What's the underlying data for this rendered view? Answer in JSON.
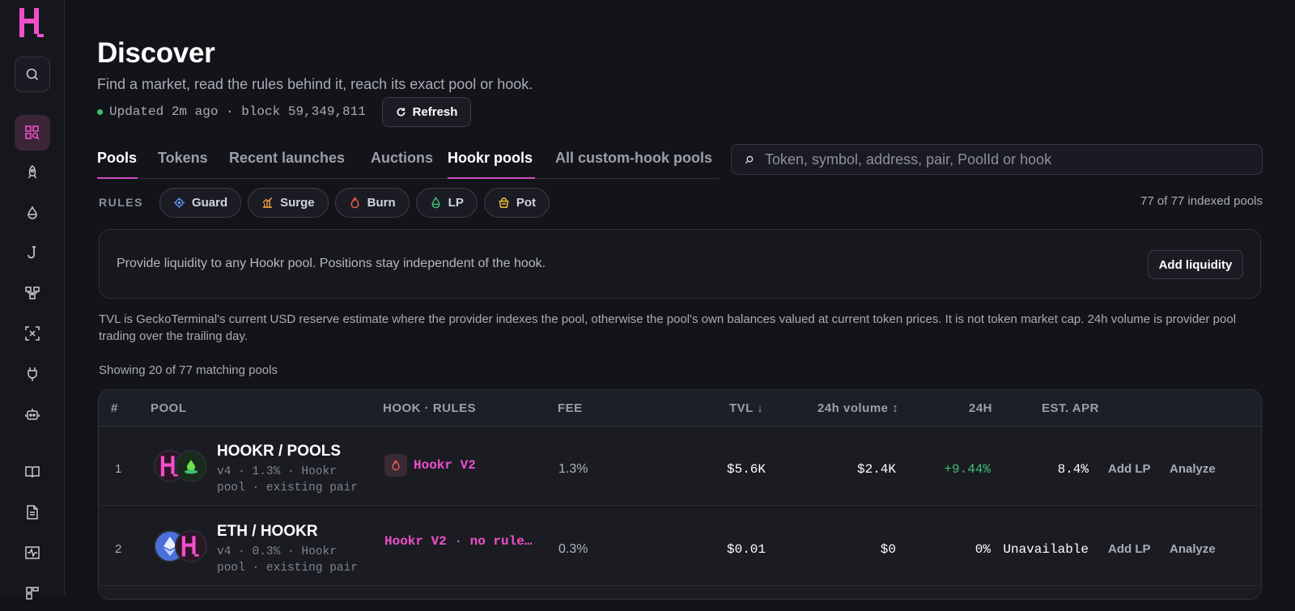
{
  "brand": {
    "logo_letter": "H",
    "accent": "#f04fc9"
  },
  "sidebar": {
    "icons": [
      "search-icon",
      "discover-icon",
      "rocket-icon",
      "drop-icon",
      "hook-icon",
      "hierarchy-icon",
      "scan-icon",
      "plug-icon",
      "robot-icon",
      "book-icon",
      "document-icon",
      "activity-icon"
    ]
  },
  "header": {
    "title": "Discover",
    "subtitle": "Find a market, read the rules behind it, reach its exact pool or hook.",
    "updated": "Updated 2m ago · block 59,349,811",
    "refresh_label": "Refresh"
  },
  "tabs": [
    {
      "label": "Pools",
      "active": true
    },
    {
      "label": "Tokens",
      "active": false
    },
    {
      "label": "Recent launches",
      "active": false
    },
    {
      "label": "Auctions",
      "active": false
    },
    {
      "label": "Hookr pools",
      "active": true
    },
    {
      "label": "All custom-hook pools",
      "active": false
    }
  ],
  "search": {
    "placeholder": "Token, symbol, address, pair, PoolId or hook"
  },
  "rules": {
    "label": "RULES",
    "chips": [
      {
        "label": "Guard",
        "color": "#5b8def"
      },
      {
        "label": "Surge",
        "color": "#f0a03c"
      },
      {
        "label": "Burn",
        "color": "#ef5a4f"
      },
      {
        "label": "LP",
        "color": "#3fbf73"
      },
      {
        "label": "Pot",
        "color": "#f0c23c"
      }
    ],
    "count": "77 of 77 indexed pools"
  },
  "banner": {
    "text": "Provide liquidity to any Hookr pool. Positions stay independent of the hook.",
    "button": "Add liquidity"
  },
  "note": "TVL is GeckoTerminal's current USD reserve estimate where the provider indexes the pool, otherwise the pool's own balances valued at current token prices. It is not token market cap. 24h volume is provider pool trading over the trailing day.",
  "showing": "Showing 20 of 77 matching pools",
  "table": {
    "headers": {
      "num": "#",
      "pool": "POOL",
      "hook": "HOOK · RULES",
      "fee": "FEE",
      "tvl": "TVL ↓",
      "volume": "24h volume ↕",
      "change": "24H",
      "apr": "EST. APR"
    },
    "rows": [
      {
        "num": "1",
        "pair": "HOOKR / POOLS",
        "meta": "v4 · 1.3% · Hookr pool · existing pair",
        "hook": "Hookr V2",
        "fee": "1.3%",
        "tvl": "$5.6K",
        "volume": "$2.4K",
        "change": "+9.44%",
        "apr": "8.4%",
        "add_lp": "Add LP",
        "analyze": "Analyze"
      },
      {
        "num": "2",
        "pair": "ETH / HOOKR",
        "meta": "v4 · 0.3% · Hookr pool · existing pair",
        "hook": "Hookr V2 · no rule…",
        "fee": "0.3%",
        "tvl": "$0.01",
        "volume": "$0",
        "change": "0%",
        "apr": "Unavailable",
        "add_lp": "Add LP",
        "analyze": "Analyze"
      }
    ]
  }
}
